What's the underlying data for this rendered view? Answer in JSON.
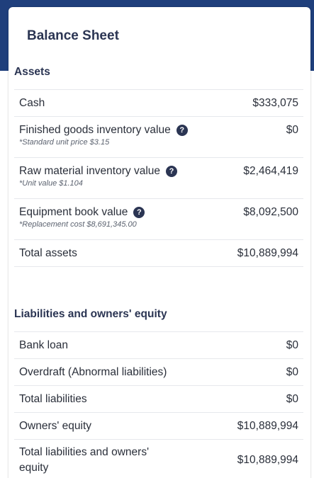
{
  "card": {
    "title": "Balance Sheet"
  },
  "assets": {
    "title": "Assets",
    "rows": [
      {
        "label": "Cash",
        "value": "$333,075"
      },
      {
        "label": "Finished goods inventory value",
        "note": "*Standard unit price $3.15",
        "value": "$0",
        "help": "?"
      },
      {
        "label": "Raw material inventory value",
        "note": "*Unit value $1.104",
        "value": "$2,464,419",
        "help": "?"
      },
      {
        "label": "Equipment book value",
        "note": "*Replacement cost $8,691,345.00",
        "value": "$8,092,500",
        "help": "?"
      },
      {
        "label": "Total assets",
        "value": "$10,889,994"
      }
    ]
  },
  "liabilities": {
    "title": "Liabilities and owners' equity",
    "rows": [
      {
        "label": "Bank loan",
        "value": "$0"
      },
      {
        "label": "Overdraft (Abnormal liabilities)",
        "value": "$0"
      },
      {
        "label": "Total liabilities",
        "value": "$0"
      },
      {
        "label": "Owners' equity",
        "value": "$10,889,994"
      },
      {
        "label_line1": "Total liabilities and owners'",
        "label_line2": "equity",
        "value": "$10,889,994"
      }
    ]
  },
  "colors": {
    "header_band": "#1f3f7c",
    "title_text": "#2b3553",
    "divider": "#e6e8ec"
  }
}
